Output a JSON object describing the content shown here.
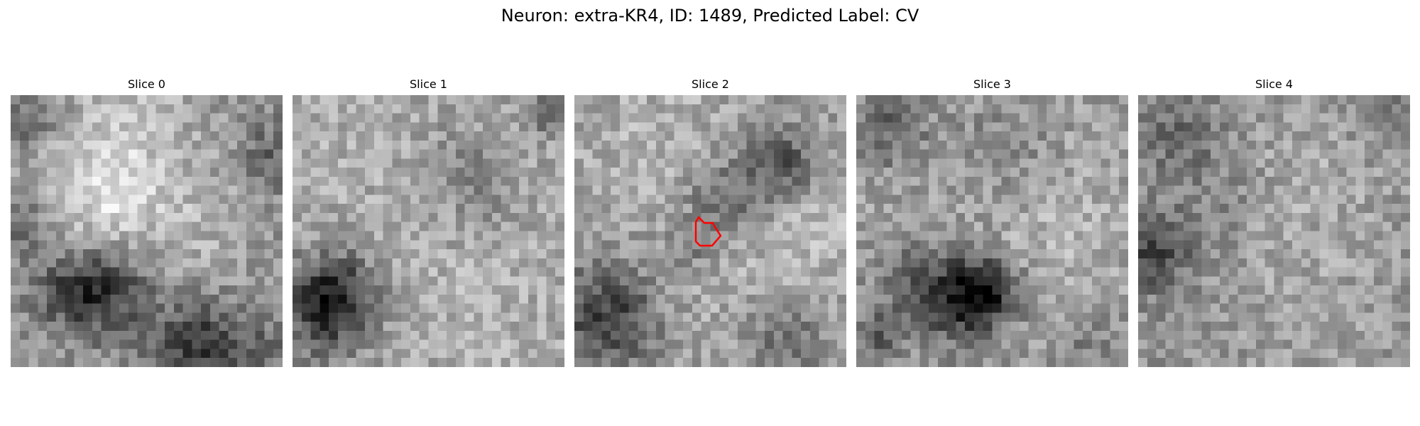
{
  "figure": {
    "title": "Neuron: extra-KR4, ID: 1489, Predicted Label: CV"
  },
  "panels": [
    {
      "title": "Slice 0",
      "base": 150
    },
    {
      "title": "Slice 1",
      "base": 165
    },
    {
      "title": "Slice 2",
      "base": 160
    },
    {
      "title": "Slice 3",
      "base": 160
    },
    {
      "title": "Slice 4",
      "base": 150
    }
  ],
  "colors": {
    "colormap": "gray",
    "contour": "#ff0000"
  }
}
